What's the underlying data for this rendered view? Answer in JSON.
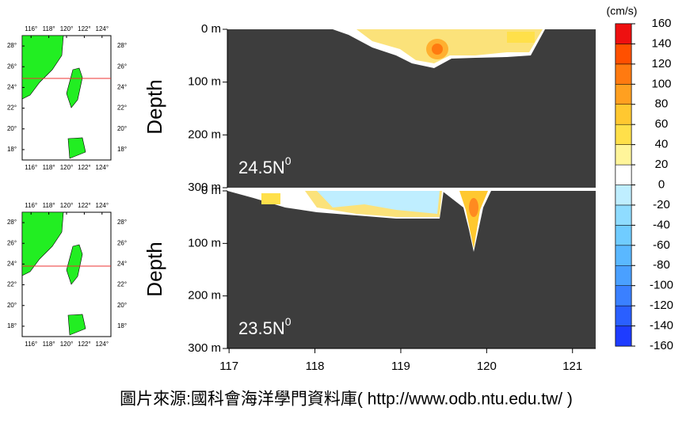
{
  "colorbar": {
    "unit": "(cm/s)",
    "ticks": [
      -160,
      -140,
      -120,
      -100,
      -80,
      -60,
      -40,
      -20,
      0,
      20,
      40,
      60,
      80,
      100,
      120,
      140,
      160
    ],
    "colors": [
      "#1e3cff",
      "#2a5fff",
      "#3a80ff",
      "#4aa0ff",
      "#5ab8ff",
      "#70ccff",
      "#8fdcff",
      "#bfeeff",
      "#ffffff",
      "#fff59a",
      "#ffe04a",
      "#ffc830",
      "#ffa020",
      "#ff7a10",
      "#ff5000",
      "#ee1010"
    ]
  },
  "x_axis": {
    "lim": [
      116.98,
      121.27
    ],
    "ticks": [
      117,
      118,
      119,
      120,
      121
    ]
  },
  "panels": [
    {
      "label": "24.5N",
      "superscript": "0",
      "ylabel": "Depth",
      "ylim": [
        0,
        300
      ],
      "yticks": [
        {
          "value": 0,
          "label": "0 m"
        },
        {
          "value": 100,
          "label": "100 m"
        },
        {
          "value": 200,
          "label": "200 m"
        },
        {
          "value": 300,
          "label": "300 m"
        }
      ]
    },
    {
      "label": "23.5N",
      "superscript": "0",
      "ylabel": "Depth",
      "ylim": [
        0,
        300
      ],
      "yticks": [
        {
          "value": 0,
          "label": "0 m"
        },
        {
          "value": 100,
          "label": "100 m"
        },
        {
          "value": 200,
          "label": "200 m"
        },
        {
          "value": 300,
          "label": "300 m"
        }
      ]
    }
  ],
  "map": {
    "lon_ticks": [
      {
        "value": 116,
        "label": "116°"
      },
      {
        "value": 118,
        "label": "118°"
      },
      {
        "value": 120,
        "label": "120°"
      },
      {
        "value": 122,
        "label": "122°"
      },
      {
        "value": 124,
        "label": "124°"
      }
    ],
    "lat_ticks": [
      {
        "value": 18,
        "label": "18°"
      },
      {
        "value": 20,
        "label": "20°"
      },
      {
        "value": 22,
        "label": "22°"
      },
      {
        "value": 24,
        "label": "24°"
      },
      {
        "value": 26,
        "label": "26°"
      },
      {
        "value": 28,
        "label": "28°"
      }
    ]
  },
  "caption": "圖片來源:國科會海洋學門資料庫( http://www.odb.ntu.edu.tw/ )"
}
